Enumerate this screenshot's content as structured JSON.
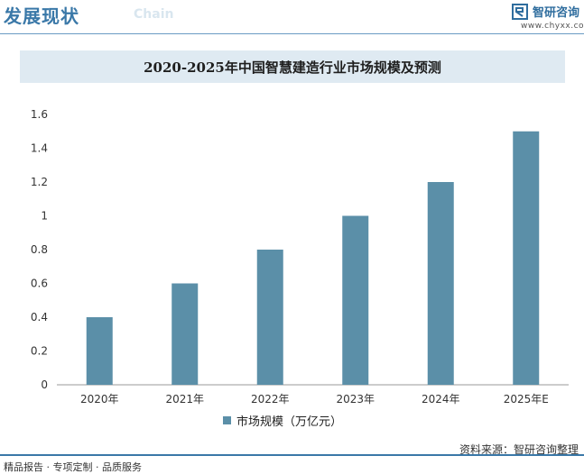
{
  "header": {
    "title": "发展现状",
    "subtitle": "Chain",
    "brand_name": "智研咨询",
    "brand_url": "www.chyxx.com"
  },
  "footer": {
    "left": "精品报告 · 专项定制 · 品质服务",
    "source": "资料来源：智研咨询整理"
  },
  "colors": {
    "bar": "#5b8fa8",
    "accent": "#3a78a8",
    "title_bg": "#dfeaf2"
  },
  "chart_data": {
    "type": "bar",
    "title": "2020-2025年中国智慧建造行业市场规模及预测",
    "categories": [
      "2020年",
      "2021年",
      "2022年",
      "2023年",
      "2024年",
      "2025年E"
    ],
    "series": [
      {
        "name": "市场规模（万亿元）",
        "values": [
          0.4,
          0.6,
          0.8,
          1.0,
          1.2,
          1.5
        ]
      }
    ],
    "ylim": [
      0,
      1.6
    ],
    "yticks": [
      "0",
      "0.2",
      "0.4",
      "0.6",
      "0.8",
      "1",
      "1.2",
      "1.4",
      "1.6"
    ],
    "xlabel": "",
    "ylabel": "",
    "grid": false,
    "legend": "bottom"
  }
}
